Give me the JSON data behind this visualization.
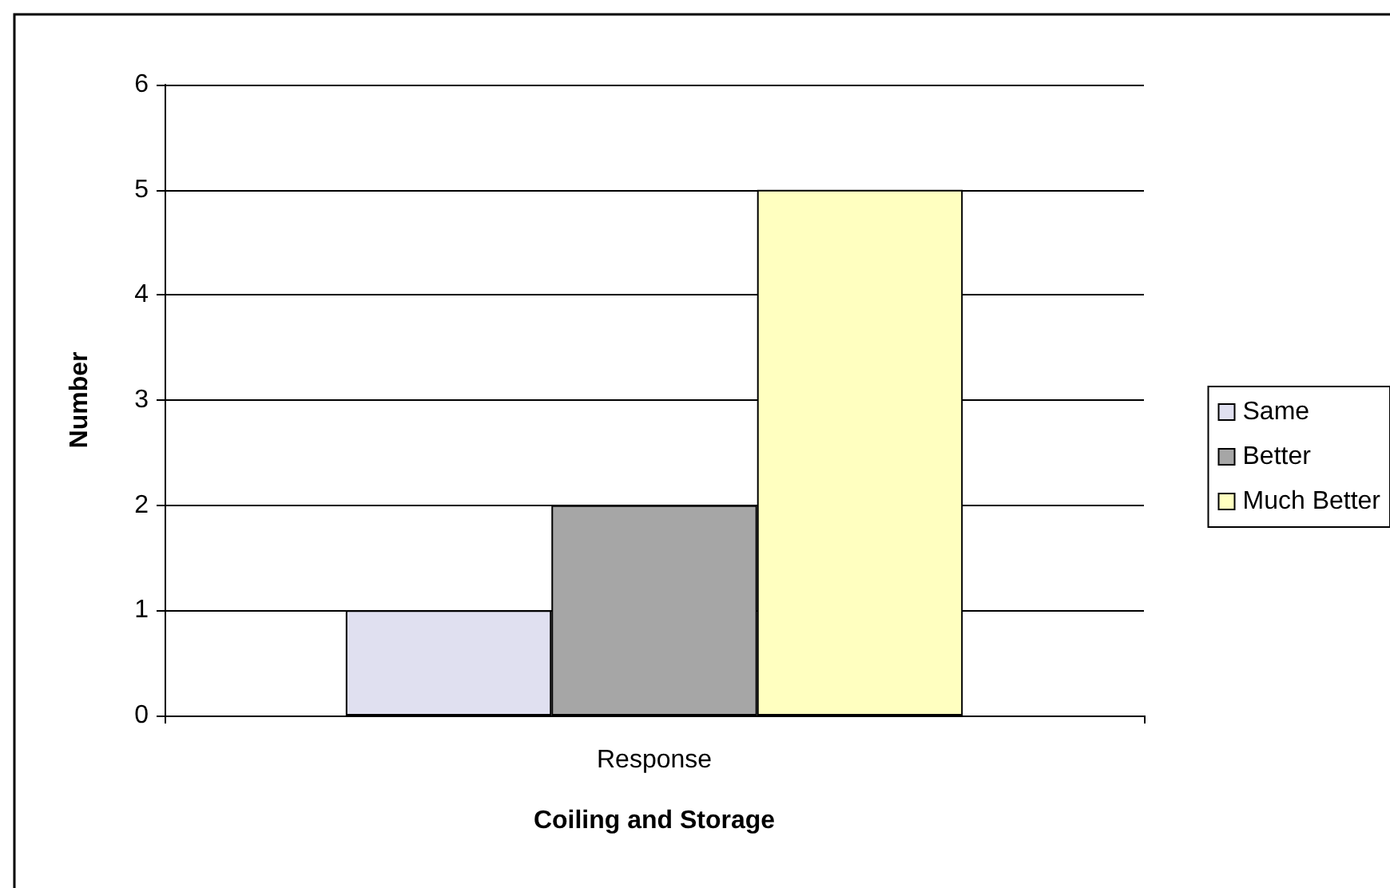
{
  "chart_data": {
    "type": "bar",
    "xlabel": "Coiling and Storage",
    "ylabel": "Number",
    "categories": [
      "Response"
    ],
    "series": [
      {
        "name": "Same",
        "color": "#e0e0f0",
        "values": [
          1
        ]
      },
      {
        "name": "Better",
        "color": "#a6a6a6",
        "values": [
          2
        ]
      },
      {
        "name": "Much Better",
        "color": "#ffffc0",
        "values": [
          5
        ]
      }
    ],
    "ylim": [
      0,
      6
    ],
    "yticks": [
      0,
      1,
      2,
      3,
      4,
      5,
      6
    ],
    "grid": "y",
    "legend": "right"
  }
}
